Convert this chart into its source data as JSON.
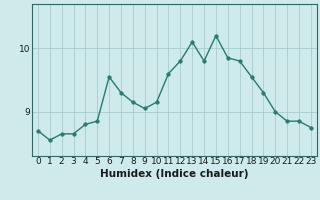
{
  "x": [
    0,
    1,
    2,
    3,
    4,
    5,
    6,
    7,
    8,
    9,
    10,
    11,
    12,
    13,
    14,
    15,
    16,
    17,
    18,
    19,
    20,
    21,
    22,
    23
  ],
  "y": [
    8.7,
    8.55,
    8.65,
    8.65,
    8.8,
    8.85,
    9.55,
    9.3,
    9.15,
    9.05,
    9.15,
    9.6,
    9.8,
    10.1,
    9.8,
    10.2,
    9.85,
    9.8,
    9.55,
    9.3,
    9.0,
    8.85,
    8.85,
    8.75
  ],
  "line_color": "#2a7a6f",
  "marker": "o",
  "marker_size": 2.5,
  "bg_color": "#ceeaea",
  "grid_color": "#aacccc",
  "xlabel": "Humidex (Indice chaleur)",
  "yticks": [
    9,
    10
  ],
  "ylim": [
    8.3,
    10.7
  ],
  "xlim": [
    -0.5,
    23.5
  ],
  "xlabel_fontsize": 7.5,
  "tick_fontsize": 6.5,
  "line_width": 1.0
}
